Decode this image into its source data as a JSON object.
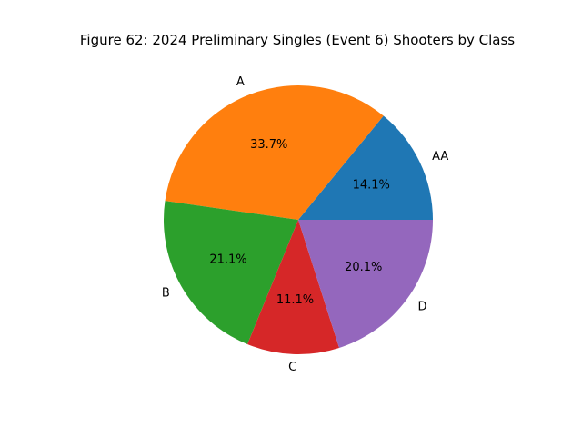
{
  "chart_data": {
    "type": "pie",
    "title": "Figure 62: 2024 Preliminary Singles (Event 6) Shooters by Class",
    "categories": [
      "AA",
      "A",
      "B",
      "C",
      "D"
    ],
    "values": [
      14.1,
      33.7,
      21.1,
      11.1,
      20.1
    ],
    "percent_labels": [
      "14.1%",
      "33.7%",
      "21.1%",
      "11.1%",
      "20.1%"
    ],
    "colors": [
      "#1f77b4",
      "#ff7f0e",
      "#2ca02c",
      "#d62728",
      "#9467bd"
    ],
    "start_angle_deg": 0,
    "direction": "counterclockwise"
  }
}
